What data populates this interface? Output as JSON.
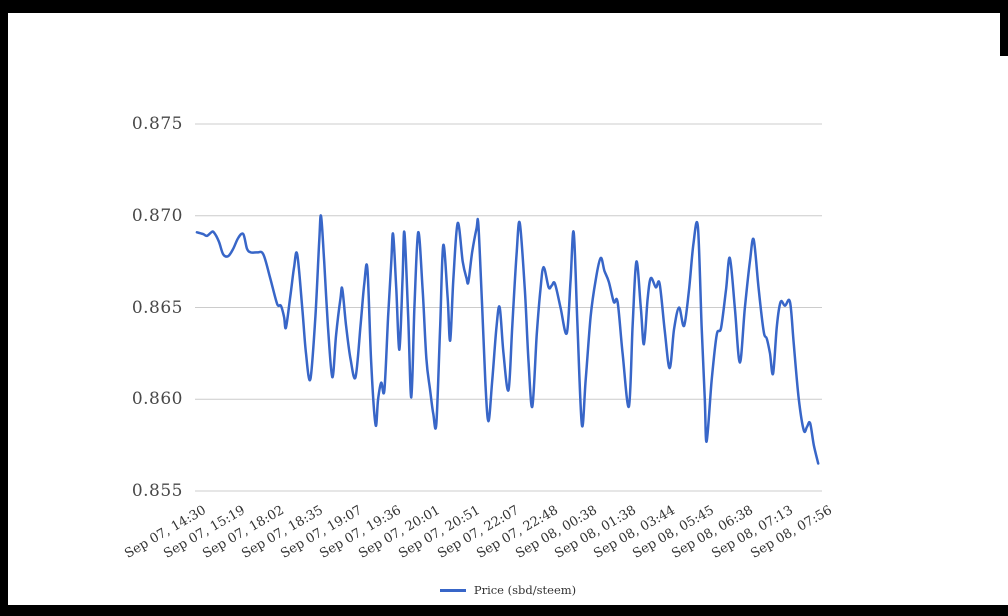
{
  "page": {
    "background": "#ffffff",
    "frame_color": "#000000"
  },
  "legend": {
    "label": "Price (sbd/steem)",
    "swatch_color": "#3866c8"
  },
  "chart_data": {
    "type": "line",
    "title": "",
    "xlabel": "",
    "ylabel": "",
    "ylim": [
      0.855,
      0.875
    ],
    "grid": "horizontal",
    "gridline_color": "#cccccc",
    "label_color": "#333333",
    "legend_position": "bottom",
    "y_ticks": [
      0.875,
      0.87,
      0.865,
      0.86,
      0.855
    ],
    "y_tick_labels": [
      "0.875",
      "0.870",
      "0.865",
      "0.860",
      "0.855"
    ],
    "x_tick_labels": [
      "Sep 07, 14:30",
      "Sep 07, 15:19",
      "Sep 07, 18:02",
      "Sep 07, 18:35",
      "Sep 07, 19:07",
      "Sep 07, 19:36",
      "Sep 07, 20:01",
      "Sep 07, 20:51",
      "Sep 07, 22:07",
      "Sep 07, 22:48",
      "Sep 08, 00:38",
      "Sep 08, 01:38",
      "Sep 08, 03:44",
      "Sep 08, 05:45",
      "Sep 08, 06:38",
      "Sep 08, 07:13",
      "Sep 08, 07:56"
    ],
    "series": [
      {
        "name": "Price (sbd/steem)",
        "color": "#3866c8",
        "points": [
          [
            0.003,
            0.8691
          ],
          [
            0.013,
            0.869
          ],
          [
            0.019,
            0.8689
          ],
          [
            0.026,
            0.8691
          ],
          [
            0.03,
            0.8691
          ],
          [
            0.038,
            0.8686
          ],
          [
            0.045,
            0.8679
          ],
          [
            0.053,
            0.8678
          ],
          [
            0.061,
            0.8682
          ],
          [
            0.069,
            0.8688
          ],
          [
            0.077,
            0.869
          ],
          [
            0.083,
            0.8682
          ],
          [
            0.089,
            0.868
          ],
          [
            0.099,
            0.868
          ],
          [
            0.109,
            0.8679
          ],
          [
            0.12,
            0.8666
          ],
          [
            0.131,
            0.8652
          ],
          [
            0.137,
            0.8651
          ],
          [
            0.142,
            0.8645
          ],
          [
            0.145,
            0.8639
          ],
          [
            0.152,
            0.8656
          ],
          [
            0.158,
            0.8672
          ],
          [
            0.163,
            0.8679
          ],
          [
            0.171,
            0.865
          ],
          [
            0.177,
            0.8625
          ],
          [
            0.184,
            0.8611
          ],
          [
            0.192,
            0.8645
          ],
          [
            0.198,
            0.8685
          ],
          [
            0.201,
            0.87
          ],
          [
            0.206,
            0.8675
          ],
          [
            0.212,
            0.864
          ],
          [
            0.219,
            0.8612
          ],
          [
            0.225,
            0.8635
          ],
          [
            0.232,
            0.8655
          ],
          [
            0.235,
            0.866
          ],
          [
            0.241,
            0.864
          ],
          [
            0.248,
            0.8622
          ],
          [
            0.256,
            0.8612
          ],
          [
            0.264,
            0.864
          ],
          [
            0.27,
            0.8663
          ],
          [
            0.275,
            0.8671
          ],
          [
            0.281,
            0.862
          ],
          [
            0.288,
            0.8586
          ],
          [
            0.292,
            0.86
          ],
          [
            0.297,
            0.8609
          ],
          [
            0.302,
            0.8605
          ],
          [
            0.308,
            0.8645
          ],
          [
            0.313,
            0.8675
          ],
          [
            0.316,
            0.869
          ],
          [
            0.321,
            0.866
          ],
          [
            0.326,
            0.8627
          ],
          [
            0.331,
            0.8665
          ],
          [
            0.334,
            0.8691
          ],
          [
            0.34,
            0.8645
          ],
          [
            0.345,
            0.8601
          ],
          [
            0.35,
            0.865
          ],
          [
            0.356,
            0.8691
          ],
          [
            0.363,
            0.866
          ],
          [
            0.369,
            0.8622
          ],
          [
            0.375,
            0.8605
          ],
          [
            0.38,
            0.8592
          ],
          [
            0.385,
            0.8587
          ],
          [
            0.391,
            0.864
          ],
          [
            0.396,
            0.8684
          ],
          [
            0.403,
            0.8655
          ],
          [
            0.407,
            0.8632
          ],
          [
            0.412,
            0.8665
          ],
          [
            0.419,
            0.8696
          ],
          [
            0.427,
            0.8675
          ],
          [
            0.433,
            0.8666
          ],
          [
            0.436,
            0.8664
          ],
          [
            0.442,
            0.868
          ],
          [
            0.449,
            0.8693
          ],
          [
            0.452,
            0.8695
          ],
          [
            0.458,
            0.865
          ],
          [
            0.463,
            0.861
          ],
          [
            0.468,
            0.8588
          ],
          [
            0.474,
            0.861
          ],
          [
            0.481,
            0.864
          ],
          [
            0.486,
            0.865
          ],
          [
            0.492,
            0.8625
          ],
          [
            0.5,
            0.8605
          ],
          [
            0.506,
            0.864
          ],
          [
            0.513,
            0.868
          ],
          [
            0.518,
            0.8696
          ],
          [
            0.526,
            0.866
          ],
          [
            0.532,
            0.862
          ],
          [
            0.538,
            0.8596
          ],
          [
            0.545,
            0.8635
          ],
          [
            0.551,
            0.866
          ],
          [
            0.556,
            0.8672
          ],
          [
            0.564,
            0.8661
          ],
          [
            0.569,
            0.8662
          ],
          [
            0.574,
            0.8663
          ],
          [
            0.583,
            0.865
          ],
          [
            0.593,
            0.8636
          ],
          [
            0.599,
            0.8665
          ],
          [
            0.604,
            0.8691
          ],
          [
            0.61,
            0.864
          ],
          [
            0.617,
            0.8586
          ],
          [
            0.623,
            0.861
          ],
          [
            0.631,
            0.8645
          ],
          [
            0.639,
            0.8665
          ],
          [
            0.647,
            0.8677
          ],
          [
            0.653,
            0.867
          ],
          [
            0.66,
            0.8664
          ],
          [
            0.668,
            0.8653
          ],
          [
            0.674,
            0.8653
          ],
          [
            0.682,
            0.8625
          ],
          [
            0.692,
            0.8596
          ],
          [
            0.698,
            0.864
          ],
          [
            0.704,
            0.8675
          ],
          [
            0.711,
            0.865
          ],
          [
            0.716,
            0.863
          ],
          [
            0.722,
            0.8655
          ],
          [
            0.727,
            0.8666
          ],
          [
            0.735,
            0.8661
          ],
          [
            0.741,
            0.8663
          ],
          [
            0.749,
            0.8638
          ],
          [
            0.757,
            0.8617
          ],
          [
            0.764,
            0.8638
          ],
          [
            0.772,
            0.865
          ],
          [
            0.78,
            0.864
          ],
          [
            0.788,
            0.866
          ],
          [
            0.795,
            0.8685
          ],
          [
            0.802,
            0.8694
          ],
          [
            0.808,
            0.864
          ],
          [
            0.813,
            0.86
          ],
          [
            0.816,
            0.8577
          ],
          [
            0.824,
            0.861
          ],
          [
            0.832,
            0.8635
          ],
          [
            0.839,
            0.8639
          ],
          [
            0.847,
            0.866
          ],
          [
            0.853,
            0.8677
          ],
          [
            0.861,
            0.865
          ],
          [
            0.869,
            0.862
          ],
          [
            0.877,
            0.865
          ],
          [
            0.885,
            0.8675
          ],
          [
            0.891,
            0.8687
          ],
          [
            0.899,
            0.866
          ],
          [
            0.907,
            0.8637
          ],
          [
            0.912,
            0.8633
          ],
          [
            0.917,
            0.8625
          ],
          [
            0.922,
            0.8614
          ],
          [
            0.928,
            0.864
          ],
          [
            0.934,
            0.8653
          ],
          [
            0.941,
            0.8651
          ],
          [
            0.949,
            0.8653
          ],
          [
            0.955,
            0.863
          ],
          [
            0.963,
            0.86
          ],
          [
            0.971,
            0.8583
          ],
          [
            0.976,
            0.8585
          ],
          [
            0.981,
            0.8587
          ],
          [
            0.987,
            0.8575
          ],
          [
            0.994,
            0.8565
          ]
        ]
      }
    ]
  }
}
